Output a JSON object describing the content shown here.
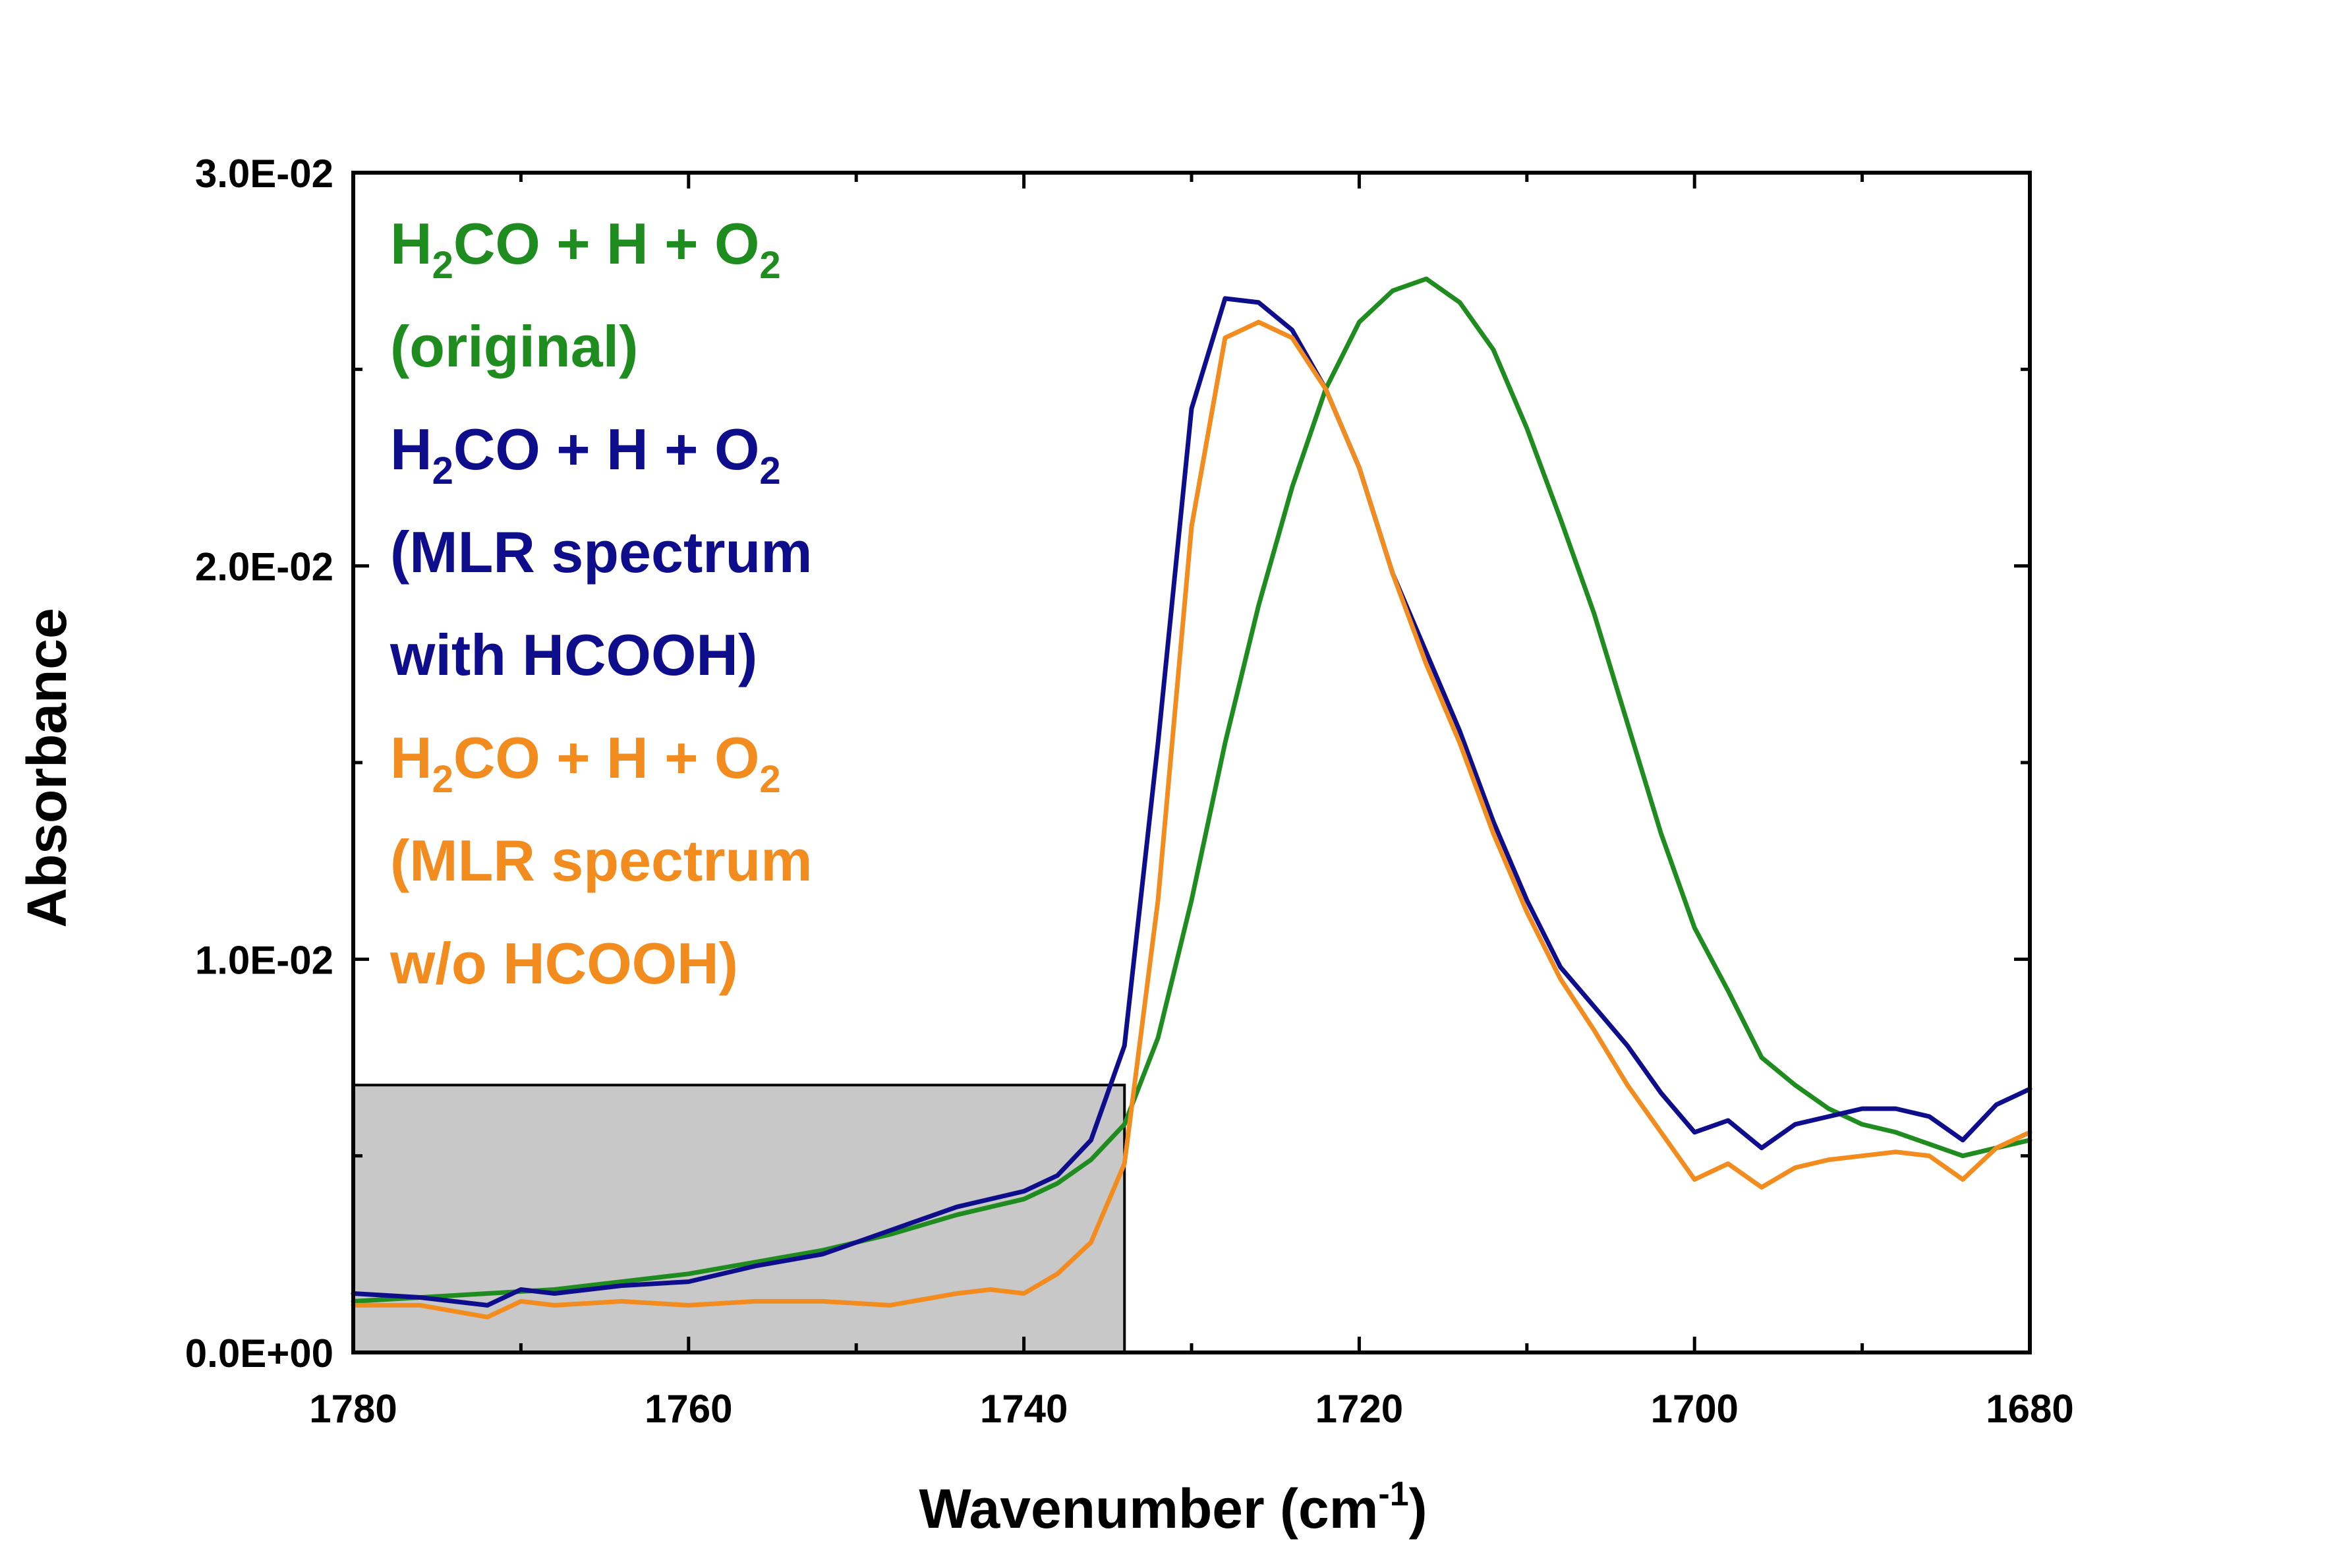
{
  "chart_data": {
    "type": "line",
    "title": "",
    "xlabel": "Wavenumber (cm",
    "xlabel_sup": "-1",
    "xlabel_close": ")",
    "ylabel": "Absorbance",
    "xlim": [
      1780,
      1680
    ],
    "ylim": [
      0,
      0.03
    ],
    "x_ticks": [
      1780,
      1760,
      1740,
      1720,
      1700,
      1680
    ],
    "x_tick_labels": [
      "1780",
      "1760",
      "1740",
      "1720",
      "1700",
      "1680"
    ],
    "y_ticks": [
      0,
      0.01,
      0.02,
      0.03
    ],
    "y_tick_labels": [
      "0.0E+00",
      "1.0E-02",
      "2.0E-02",
      "3.0E-02"
    ],
    "y_minor_ticks": [
      0.005,
      0.015,
      0.025
    ],
    "highlight_region": {
      "x": [
        1780,
        1734
      ],
      "y": [
        0,
        0.0068
      ],
      "fill": "#c8c8c8"
    },
    "series": [
      {
        "name": "H2CO + H + O2 (original)",
        "color": "#1e8c1e",
        "x": [
          1780,
          1776,
          1772,
          1768,
          1764,
          1760,
          1756,
          1752,
          1748,
          1744,
          1740,
          1738,
          1736,
          1734,
          1732,
          1730,
          1728,
          1726,
          1724,
          1722,
          1720,
          1718,
          1716,
          1714,
          1712,
          1710,
          1708,
          1706,
          1704,
          1702,
          1700,
          1698,
          1696,
          1694,
          1692,
          1690,
          1688,
          1686,
          1684,
          1682,
          1680
        ],
        "values": [
          0.0013,
          0.0014,
          0.0015,
          0.0016,
          0.0018,
          0.002,
          0.0023,
          0.0026,
          0.003,
          0.0035,
          0.0039,
          0.0043,
          0.0049,
          0.0058,
          0.008,
          0.0115,
          0.0155,
          0.019,
          0.022,
          0.0245,
          0.0262,
          0.027,
          0.0273,
          0.0267,
          0.0255,
          0.0235,
          0.0212,
          0.0188,
          0.016,
          0.0132,
          0.0108,
          0.0092,
          0.0075,
          0.0068,
          0.0062,
          0.0058,
          0.0056,
          0.0053,
          0.005,
          0.0052,
          0.0054
        ]
      },
      {
        "name": "H2CO + H + O2 (MLR spectrum with HCOOH)",
        "color": "#0e0e8c",
        "x": [
          1780,
          1776,
          1772,
          1770,
          1768,
          1764,
          1760,
          1756,
          1752,
          1748,
          1744,
          1740,
          1738,
          1736,
          1734,
          1732,
          1730,
          1728,
          1726,
          1724,
          1722,
          1720,
          1718,
          1716,
          1714,
          1712,
          1710,
          1708,
          1706,
          1704,
          1702,
          1700,
          1698,
          1696,
          1694,
          1692,
          1690,
          1688,
          1686,
          1684,
          1682,
          1680
        ],
        "values": [
          0.0015,
          0.0014,
          0.0012,
          0.0016,
          0.0015,
          0.0017,
          0.0018,
          0.0022,
          0.0025,
          0.0031,
          0.0037,
          0.0041,
          0.0045,
          0.0054,
          0.0078,
          0.0155,
          0.024,
          0.0268,
          0.0267,
          0.026,
          0.0245,
          0.0225,
          0.0198,
          0.0178,
          0.0158,
          0.0135,
          0.0115,
          0.0098,
          0.0088,
          0.0078,
          0.0066,
          0.0056,
          0.0059,
          0.0052,
          0.0058,
          0.006,
          0.0062,
          0.0062,
          0.006,
          0.0054,
          0.0063,
          0.0067
        ]
      },
      {
        "name": "H2CO + H + O2 (MLR spectrum w/o HCOOH)",
        "color": "#f28c1e",
        "x": [
          1780,
          1776,
          1772,
          1770,
          1768,
          1764,
          1760,
          1756,
          1752,
          1748,
          1744,
          1742,
          1740,
          1738,
          1736,
          1734,
          1732,
          1730,
          1728,
          1726,
          1724,
          1722,
          1720,
          1718,
          1716,
          1714,
          1712,
          1710,
          1708,
          1706,
          1704,
          1702,
          1700,
          1698,
          1696,
          1694,
          1692,
          1690,
          1688,
          1686,
          1684,
          1682,
          1680
        ],
        "values": [
          0.0012,
          0.0012,
          0.0009,
          0.0013,
          0.0012,
          0.0013,
          0.0012,
          0.0013,
          0.0013,
          0.0012,
          0.0015,
          0.0016,
          0.0015,
          0.002,
          0.0028,
          0.0048,
          0.0115,
          0.021,
          0.0258,
          0.0262,
          0.0258,
          0.0245,
          0.0225,
          0.0198,
          0.0175,
          0.0155,
          0.0132,
          0.0112,
          0.0095,
          0.0082,
          0.0068,
          0.0056,
          0.0044,
          0.0048,
          0.0042,
          0.0047,
          0.0049,
          0.005,
          0.0051,
          0.005,
          0.0044,
          0.0052,
          0.0056
        ]
      }
    ],
    "legend": [
      {
        "line1_main": "H",
        "line1_sub": "2",
        "line1_mid": "CO + H + O",
        "line1_sub2": "2",
        "lines": [
          "(original)"
        ],
        "color": "#1e8c1e"
      },
      {
        "line1_main": "H",
        "line1_sub": "2",
        "line1_mid": "CO + H + O",
        "line1_sub2": "2",
        "lines": [
          "(MLR spectrum",
          "with HCOOH)"
        ],
        "color": "#0e0e8c"
      },
      {
        "line1_main": "H",
        "line1_sub": "2",
        "line1_mid": "CO + H + O",
        "line1_sub2": "2",
        "lines": [
          "(MLR spectrum",
          "w/o HCOOH)"
        ],
        "color": "#f28c1e"
      }
    ],
    "legend_position": "top-left"
  }
}
